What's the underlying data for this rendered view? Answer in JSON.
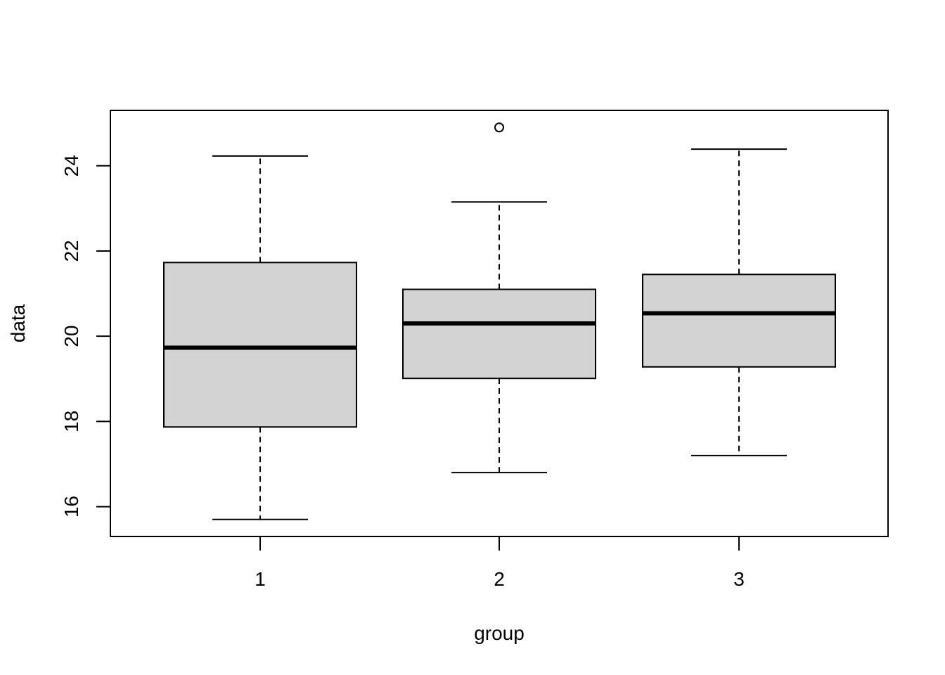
{
  "chart_data": {
    "type": "boxplot",
    "xlabel": "group",
    "ylabel": "data",
    "categories": [
      "1",
      "2",
      "3"
    ],
    "ylim": [
      15.3,
      25.3
    ],
    "y_ticks": [
      16,
      18,
      20,
      22,
      24
    ],
    "y_tick_labels": [
      "16",
      "18",
      "20",
      "22",
      "24"
    ],
    "grid": false,
    "colors": {
      "box_fill": "#d3d3d3",
      "line": "#000000",
      "background": "#ffffff"
    },
    "boxes": [
      {
        "group": "1",
        "whisker_low": 15.7,
        "q1": 17.87,
        "median": 19.73,
        "q3": 21.73,
        "whisker_high": 24.23,
        "outliers": []
      },
      {
        "group": "2",
        "whisker_low": 16.8,
        "q1": 19.01,
        "median": 20.3,
        "q3": 21.1,
        "whisker_high": 23.15,
        "outliers": [
          24.9
        ]
      },
      {
        "group": "3",
        "whisker_low": 17.2,
        "q1": 19.28,
        "median": 20.54,
        "q3": 21.45,
        "whisker_high": 24.39,
        "outliers": []
      }
    ]
  }
}
